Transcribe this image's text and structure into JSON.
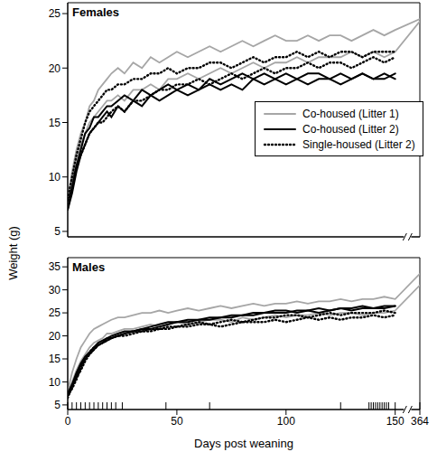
{
  "chart_data": [
    {
      "type": "line",
      "title": "Females",
      "legend": "right",
      "tick_labels": "y",
      "x": [
        0,
        2,
        4,
        6,
        8,
        10,
        12,
        14,
        16,
        18,
        20,
        23,
        26,
        30,
        34,
        38,
        42,
        46,
        50,
        55,
        60,
        65,
        70,
        75,
        80,
        85,
        90,
        95,
        100,
        105,
        110,
        115,
        120,
        125,
        130,
        135,
        140,
        145,
        150,
        364
      ],
      "xlim": [
        0,
        364
      ],
      "xticks": [
        0,
        50,
        100,
        150,
        364
      ],
      "ylim": [
        4.5,
        26
      ],
      "yticks": [
        5,
        10,
        15,
        20,
        25
      ],
      "series": [
        {
          "name": "Co-housed (Litter 1)",
          "color": "#a6a6a6",
          "line_style": "solid",
          "values": [
            8,
            10.5,
            12.5,
            14,
            15,
            16.5,
            17,
            18,
            18.5,
            19,
            19.5,
            20,
            19.5,
            20.5,
            20,
            21,
            20.5,
            21,
            21.5,
            21,
            21.5,
            22,
            21.5,
            22,
            22.5,
            22,
            22.5,
            23,
            22.5,
            22.5,
            23,
            22.5,
            23,
            23,
            22.5,
            23,
            23.5,
            23,
            23.5,
            24.5
          ]
        },
        {
          "name": "Co-housed (Litter 1)",
          "color": "#a6a6a6",
          "line_style": "solid",
          "values": [
            7.5,
            9.5,
            11.5,
            13,
            14,
            15,
            15.5,
            16,
            16.5,
            17,
            17,
            17.5,
            17,
            18,
            18,
            18.5,
            18,
            19,
            19,
            19.5,
            19,
            19.5,
            20,
            19.5,
            20,
            20.5,
            20,
            20.5,
            20.5,
            21,
            20.5,
            21,
            21,
            21,
            21.5,
            21,
            21.5,
            21,
            21.5,
            24.3
          ]
        },
        {
          "name": "Co-housed (Litter 2)",
          "color": "#000000",
          "line_style": "solid",
          "values": [
            7,
            8.5,
            10.5,
            12,
            13,
            14,
            14.5,
            15,
            15.5,
            16,
            15.5,
            16.5,
            16,
            17,
            16.5,
            17.5,
            17,
            17.5,
            18,
            17.5,
            18,
            18.5,
            18,
            18.5,
            18,
            19,
            18.5,
            19,
            18.5,
            19,
            18.5,
            19,
            19,
            18.5,
            19,
            19.5,
            19,
            19,
            19.5,
            null
          ]
        },
        {
          "name": "Co-housed (Litter 2)",
          "color": "#000000",
          "line_style": "solid",
          "values": [
            7,
            9,
            11,
            12.5,
            14,
            14.5,
            15.5,
            15.5,
            16,
            16.5,
            16.5,
            17,
            17.5,
            17,
            18,
            17.5,
            18,
            18.5,
            18,
            18.5,
            18,
            19,
            18.5,
            19,
            19.5,
            19,
            19.5,
            19,
            19.5,
            19,
            19.5,
            19.5,
            19,
            19.5,
            19,
            19.5,
            19,
            19.5,
            19,
            null
          ]
        },
        {
          "name": "Single-housed (Litter 2)",
          "color": "#000000",
          "line_style": "dotted",
          "values": [
            8,
            10,
            12,
            13.5,
            15,
            16,
            16.5,
            17,
            17.5,
            18,
            18,
            18.5,
            18.5,
            19,
            19,
            19.5,
            19.5,
            20,
            19.5,
            20,
            20,
            20.5,
            20.5,
            20,
            20.5,
            21,
            20.5,
            21,
            21,
            21.5,
            21,
            21.5,
            21,
            21.5,
            21.5,
            21,
            21.5,
            21.5,
            21.5,
            null
          ]
        },
        {
          "name": "Single-housed (Litter 2)",
          "color": "#000000",
          "line_style": "dotted",
          "values": [
            7.5,
            9,
            11,
            12,
            13,
            14,
            14.5,
            15,
            15,
            15.5,
            16,
            16.5,
            16,
            17,
            17,
            17.5,
            18,
            18,
            18.5,
            18.5,
            19,
            18.5,
            19,
            19.5,
            19,
            19.5,
            20,
            19.5,
            20,
            20,
            20.5,
            20,
            20.5,
            20.5,
            20,
            20.5,
            21,
            20.5,
            21,
            null
          ]
        }
      ]
    },
    {
      "type": "line",
      "title": "Males",
      "xlabel": "Days post weaning",
      "ylabel": "Weight (g)",
      "x": [
        0,
        2,
        4,
        6,
        8,
        10,
        12,
        14,
        16,
        18,
        20,
        23,
        26,
        30,
        34,
        38,
        42,
        46,
        50,
        55,
        60,
        65,
        70,
        75,
        80,
        85,
        90,
        95,
        100,
        105,
        110,
        115,
        120,
        125,
        130,
        135,
        140,
        145,
        150,
        364
      ],
      "xlim": [
        0,
        364
      ],
      "xticks": [
        0,
        50,
        100,
        150,
        364
      ],
      "ylim": [
        4,
        37
      ],
      "yticks": [
        5,
        10,
        15,
        20,
        25,
        30,
        35
      ],
      "rug": [
        0,
        2,
        4,
        6,
        8,
        10,
        12,
        14,
        16,
        18,
        20,
        22,
        25,
        45,
        65,
        125,
        138,
        139,
        140,
        141,
        142,
        143,
        144,
        145,
        146,
        147,
        150,
        364
      ],
      "series": [
        {
          "color": "#a6a6a6",
          "line_style": "solid",
          "values": [
            8,
            12,
            15,
            17.5,
            19,
            20.5,
            21.5,
            22,
            22.5,
            23,
            23.5,
            24,
            24,
            24.5,
            25,
            25,
            25.5,
            25,
            25.5,
            26,
            25.5,
            26,
            26.5,
            26,
            26.5,
            27,
            26.5,
            27,
            27,
            27.5,
            27,
            27.5,
            27.5,
            28,
            27.5,
            28,
            28,
            28.5,
            28,
            33.5
          ]
        },
        {
          "color": "#a6a6a6",
          "line_style": "solid",
          "values": [
            7.5,
            10,
            12.5,
            14.5,
            16,
            17.5,
            18.5,
            19,
            19.5,
            20.5,
            20.5,
            21,
            21.5,
            21.5,
            22,
            22.5,
            22,
            22.5,
            23,
            22.5,
            23,
            23.5,
            23.5,
            23,
            24,
            23.5,
            24,
            24.5,
            24,
            24.5,
            24.5,
            25,
            24.5,
            25,
            25,
            24.5,
            25,
            25,
            25.5,
            31
          ]
        },
        {
          "color": "#000000",
          "line_style": "solid",
          "values": [
            7.5,
            9.5,
            12,
            14,
            15.5,
            16.5,
            17.5,
            18.5,
            19,
            19.5,
            20,
            20.5,
            21,
            21,
            21.5,
            22,
            22.5,
            23,
            23,
            23.5,
            23.5,
            24,
            24,
            24.5,
            24.5,
            25,
            25,
            25.5,
            25.5,
            25,
            25.5,
            26,
            25.5,
            26,
            26,
            26.5,
            26,
            26.5,
            26.5,
            null
          ]
        },
        {
          "color": "#000000",
          "line_style": "solid",
          "values": [
            7,
            9,
            11.5,
            13.5,
            15,
            16,
            17,
            18,
            18.5,
            19.5,
            19.5,
            20,
            20.5,
            21,
            21.5,
            21.5,
            22,
            22.5,
            23,
            23,
            23.5,
            23.5,
            24,
            24,
            24.5,
            24.5,
            25,
            25,
            25,
            25.5,
            25.5,
            25,
            25.5,
            26,
            25.5,
            26,
            26,
            26,
            26.5,
            null
          ]
        },
        {
          "color": "#000000",
          "line_style": "dotted",
          "values": [
            7,
            8.5,
            10.5,
            13,
            15,
            16.5,
            17.5,
            18,
            18.5,
            19,
            19.5,
            20,
            20,
            20.5,
            21,
            21,
            21.5,
            21.5,
            22,
            22,
            22.5,
            22.5,
            22,
            22.5,
            23,
            23,
            23,
            23.5,
            23,
            23.5,
            24,
            23.5,
            24,
            23.5,
            24,
            24,
            24.5,
            24,
            24.5,
            null
          ]
        },
        {
          "color": "#000000",
          "line_style": "dotted",
          "values": [
            6.5,
            9,
            11,
            12.5,
            14.5,
            16,
            17,
            18,
            18.5,
            19,
            19.5,
            20,
            20.5,
            21,
            21,
            21.5,
            21.5,
            22,
            22,
            22.5,
            23,
            22.5,
            23,
            23.5,
            23,
            23.5,
            24,
            24,
            24.5,
            24.5,
            24,
            24.5,
            25,
            24.5,
            25,
            25,
            25,
            25.5,
            25,
            null
          ]
        }
      ]
    }
  ]
}
